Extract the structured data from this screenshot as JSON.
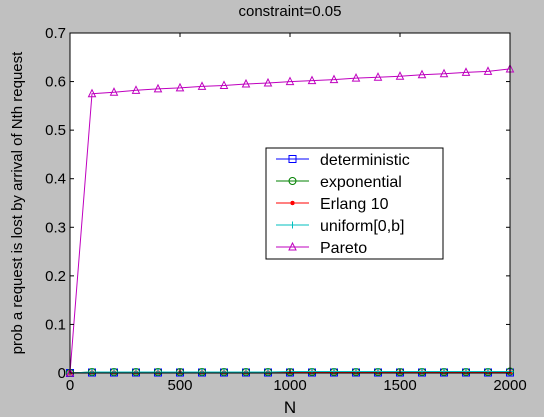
{
  "chart_data": {
    "type": "line",
    "title": "constraint=0.05",
    "xlabel": "N",
    "ylabel": "prob a request is lost by arrival of Nth request",
    "xlim": [
      0,
      2000
    ],
    "ylim": [
      0,
      0.7
    ],
    "xticks": [
      0,
      500,
      1000,
      1500,
      2000
    ],
    "yticks": [
      0,
      0.1,
      0.2,
      0.3,
      0.4,
      0.5,
      0.6,
      0.7
    ],
    "grid": false,
    "legend_position": "right-center",
    "x": [
      0,
      100,
      200,
      300,
      400,
      500,
      600,
      700,
      800,
      900,
      1000,
      1100,
      1200,
      1300,
      1400,
      1500,
      1600,
      1700,
      1800,
      1900,
      2000
    ],
    "series": [
      {
        "name": "deterministic",
        "color": "#0000ff",
        "marker": "square",
        "values": [
          0,
          0.001,
          0.001,
          0.001,
          0.001,
          0.001,
          0.001,
          0.001,
          0.001,
          0.001,
          0.001,
          0.001,
          0.001,
          0.001,
          0.001,
          0.001,
          0.001,
          0.001,
          0.001,
          0.001,
          0.001
        ]
      },
      {
        "name": "exponential",
        "color": "#008000",
        "marker": "circle",
        "values": [
          0,
          0.002,
          0.002,
          0.002,
          0.002,
          0.002,
          0.002,
          0.002,
          0.002,
          0.002,
          0.002,
          0.002,
          0.002,
          0.002,
          0.002,
          0.002,
          0.002,
          0.002,
          0.002,
          0.002,
          0.003
        ]
      },
      {
        "name": "Erlang 10",
        "color": "#ff0000",
        "marker": "dot",
        "values": [
          0,
          0.001,
          0.001,
          0.001,
          0.001,
          0.001,
          0.001,
          0.001,
          0.001,
          0.001,
          0.001,
          0.001,
          0.001,
          0.001,
          0.001,
          0.001,
          0.001,
          0.001,
          0.001,
          0.001,
          0.001
        ]
      },
      {
        "name": "uniform[0,b]",
        "color": "#00bfbf",
        "marker": "plus",
        "values": [
          0,
          0.002,
          0.002,
          0.002,
          0.002,
          0.002,
          0.002,
          0.002,
          0.002,
          0.002,
          0.003,
          0.003,
          0.003,
          0.003,
          0.003,
          0.003,
          0.003,
          0.003,
          0.003,
          0.003,
          0.003
        ]
      },
      {
        "name": "Pareto",
        "color": "#bf00bf",
        "marker": "triangle",
        "values": [
          0,
          0.575,
          0.578,
          0.582,
          0.585,
          0.587,
          0.59,
          0.592,
          0.595,
          0.597,
          0.6,
          0.602,
          0.604,
          0.607,
          0.609,
          0.611,
          0.614,
          0.616,
          0.619,
          0.621,
          0.626
        ]
      }
    ]
  }
}
